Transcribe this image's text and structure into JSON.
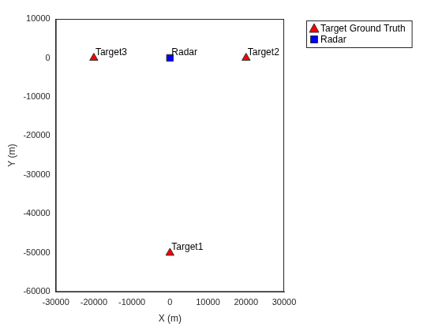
{
  "chart_data": {
    "type": "scatter",
    "xlabel": "X (m)",
    "ylabel": "Y (m)",
    "xlim": [
      -30000,
      30000
    ],
    "ylim": [
      -60000,
      10000
    ],
    "xticks": [
      -30000,
      -20000,
      -10000,
      0,
      10000,
      20000,
      30000
    ],
    "yticks": [
      -60000,
      -50000,
      -40000,
      -30000,
      -20000,
      -10000,
      0,
      10000
    ],
    "grid": false,
    "legend": "northeastoutside",
    "series": [
      {
        "name": "Target Ground Truth",
        "color": "#ff0000",
        "marker": "triangle",
        "x": [
          0,
          20000,
          -20000
        ],
        "values": [
          -50000,
          0,
          0
        ],
        "point_labels": [
          "Target1",
          "Target2",
          "Target3"
        ]
      },
      {
        "name": "Radar",
        "color": "#0000ff",
        "marker": "square",
        "x": [
          0
        ],
        "values": [
          0
        ],
        "point_labels": [
          "Radar"
        ]
      }
    ]
  }
}
